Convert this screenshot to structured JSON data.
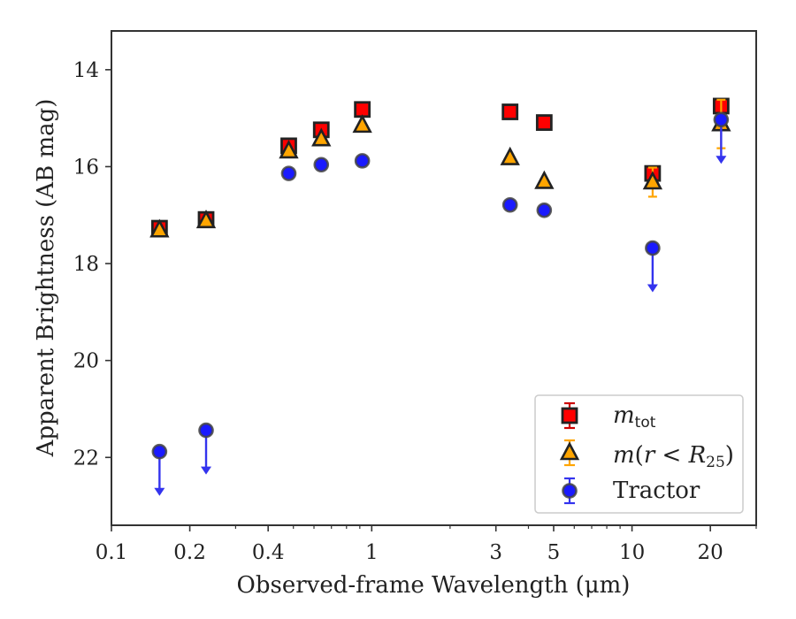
{
  "chart_data": {
    "type": "scatter",
    "xlabel": "Observed-frame Wavelength (μm)",
    "ylabel": "Apparent Brightness (AB mag)",
    "x_scale": "log",
    "y_inverted": true,
    "xlim": [
      0.1,
      30
    ],
    "ylim": [
      23.4,
      13.2
    ],
    "x_ticks": [
      {
        "value": 0.1,
        "label": "0.1"
      },
      {
        "value": 0.2,
        "label": "0.2"
      },
      {
        "value": 0.4,
        "label": "0.4"
      },
      {
        "value": 1,
        "label": "1"
      },
      {
        "value": 3,
        "label": "3"
      },
      {
        "value": 5,
        "label": "5"
      },
      {
        "value": 10,
        "label": "10"
      },
      {
        "value": 20,
        "label": "20"
      }
    ],
    "y_ticks": [
      {
        "value": 14,
        "label": "14"
      },
      {
        "value": 16,
        "label": "16"
      },
      {
        "value": 18,
        "label": "18"
      },
      {
        "value": 20,
        "label": "20"
      },
      {
        "value": 22,
        "label": "22"
      }
    ],
    "legend_position": "lower-right",
    "series": [
      {
        "name": "m_tot",
        "marker": "square",
        "color": "#ff0000",
        "error_color": "#cc0000",
        "points": [
          {
            "x": 0.153,
            "y": 17.27
          },
          {
            "x": 0.231,
            "y": 17.09
          },
          {
            "x": 0.48,
            "y": 15.57
          },
          {
            "x": 0.64,
            "y": 15.24
          },
          {
            "x": 0.92,
            "y": 14.82
          },
          {
            "x": 3.4,
            "y": 14.87
          },
          {
            "x": 4.6,
            "y": 15.09
          },
          {
            "x": 12.0,
            "y": 16.14
          },
          {
            "x": 22.0,
            "y": 14.75
          }
        ]
      },
      {
        "name": "m(r < R_25)",
        "marker": "triangle",
        "color": "#ffa500",
        "error_color": "#ffa500",
        "points": [
          {
            "x": 0.153,
            "y": 17.31
          },
          {
            "x": 0.231,
            "y": 17.12
          },
          {
            "x": 0.48,
            "y": 15.68
          },
          {
            "x": 0.64,
            "y": 15.43
          },
          {
            "x": 0.92,
            "y": 15.15
          },
          {
            "x": 3.4,
            "y": 15.82
          },
          {
            "x": 4.6,
            "y": 16.31
          },
          {
            "x": 12.0,
            "y": 16.32,
            "err": 0.3
          },
          {
            "x": 22.0,
            "y": 15.12,
            "err": 0.5
          }
        ]
      },
      {
        "name": "Tractor",
        "marker": "circle",
        "color": "#1a1aff",
        "error_color": "#3333ee",
        "points": [
          {
            "x": 0.153,
            "y": 21.88,
            "upper_limit": true
          },
          {
            "x": 0.231,
            "y": 21.44,
            "upper_limit": true
          },
          {
            "x": 0.48,
            "y": 16.14
          },
          {
            "x": 0.64,
            "y": 15.96
          },
          {
            "x": 0.92,
            "y": 15.88
          },
          {
            "x": 3.4,
            "y": 16.79
          },
          {
            "x": 4.6,
            "y": 16.9
          },
          {
            "x": 12.0,
            "y": 17.68,
            "upper_limit": true
          },
          {
            "x": 22.0,
            "y": 15.03,
            "upper_limit": true
          }
        ]
      }
    ]
  }
}
